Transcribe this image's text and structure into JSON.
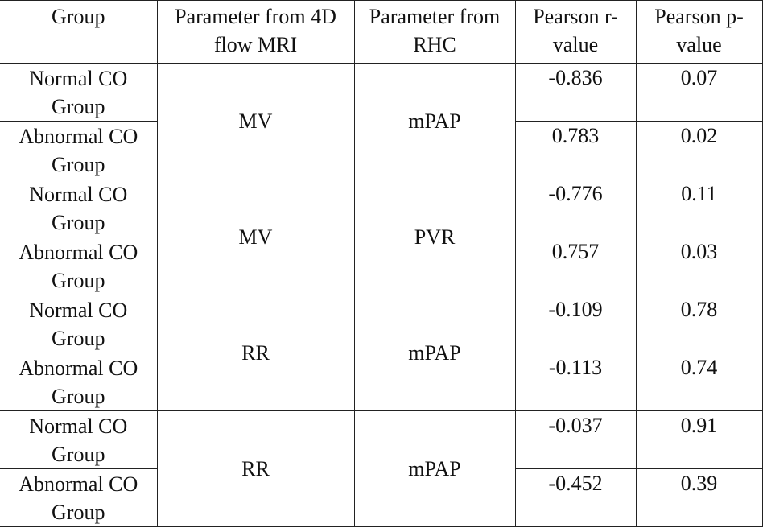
{
  "table": {
    "header": [
      "Group",
      "Parameter from 4D flow MRI",
      "Parameter from RHC",
      "Pearson r-value",
      "Pearson p-value"
    ],
    "blocks": [
      {
        "parameter": "MV",
        "rhc": "mPAP",
        "rows": [
          {
            "group": "Normal CO Group",
            "r": "-0.836",
            "p": "0.07"
          },
          {
            "group": "Abnormal CO Group",
            "r": "0.783",
            "p": "0.02"
          }
        ]
      },
      {
        "parameter": "MV",
        "rhc": "PVR",
        "rows": [
          {
            "group": "Normal CO Group",
            "r": "-0.776",
            "p": "0.11"
          },
          {
            "group": "Abnormal CO Group",
            "r": "0.757",
            "p": "0.03"
          }
        ]
      },
      {
        "parameter": "RR",
        "rhc": "mPAP",
        "rows": [
          {
            "group": "Normal CO Group",
            "r": "-0.109",
            "p": "0.78"
          },
          {
            "group": "Abnormal CO Group",
            "r": "-0.113",
            "p": "0.74"
          }
        ]
      },
      {
        "parameter": "RR",
        "rhc": "mPAP",
        "rows": [
          {
            "group": "Normal CO Group",
            "r": "-0.037",
            "p": "0.91"
          },
          {
            "group": "Abnormal CO Group",
            "r": "-0.452",
            "p": "0.39"
          }
        ]
      }
    ]
  }
}
